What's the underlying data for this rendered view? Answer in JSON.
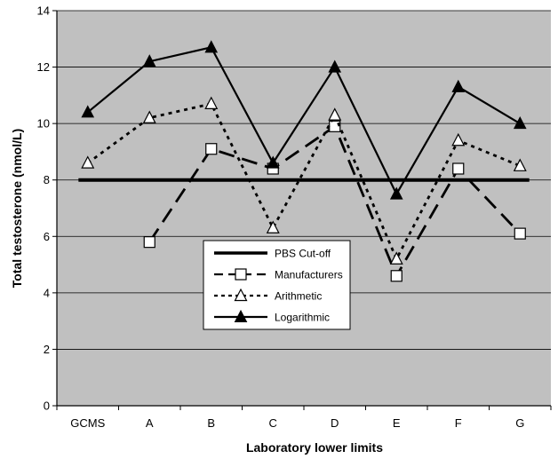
{
  "chart_data": {
    "type": "line",
    "title": "",
    "xlabel": "Laboratory lower limits",
    "ylabel": "Total testosterone (nmol/L)",
    "categories": [
      "GCMS",
      "A",
      "B",
      "C",
      "D",
      "E",
      "F",
      "G"
    ],
    "ylim": [
      0,
      14
    ],
    "yticks": [
      0,
      2,
      4,
      6,
      8,
      10,
      12,
      14
    ],
    "grid": true,
    "legend_position": "lower-center",
    "series": [
      {
        "name": "PBS Cut-off",
        "values": [
          8,
          8,
          8,
          8,
          8,
          8,
          8,
          8
        ],
        "style": "solid-thick",
        "marker": "none"
      },
      {
        "name": "Manufacturers",
        "values": [
          null,
          5.8,
          9.1,
          8.4,
          9.9,
          4.6,
          8.4,
          6.1
        ],
        "style": "long-dash",
        "marker": "open-square"
      },
      {
        "name": "Arithmetic",
        "values": [
          8.6,
          10.2,
          10.7,
          6.3,
          10.3,
          5.2,
          9.4,
          8.5
        ],
        "style": "dotted",
        "marker": "open-triangle"
      },
      {
        "name": "Logarithmic",
        "values": [
          10.4,
          12.2,
          12.7,
          8.6,
          12.0,
          7.5,
          11.3,
          10.0
        ],
        "style": "solid",
        "marker": "filled-triangle"
      }
    ],
    "colors": {
      "plot_bg": "#c0c0c0",
      "line": "#000000",
      "marker_fill_open": "#ffffff"
    }
  }
}
